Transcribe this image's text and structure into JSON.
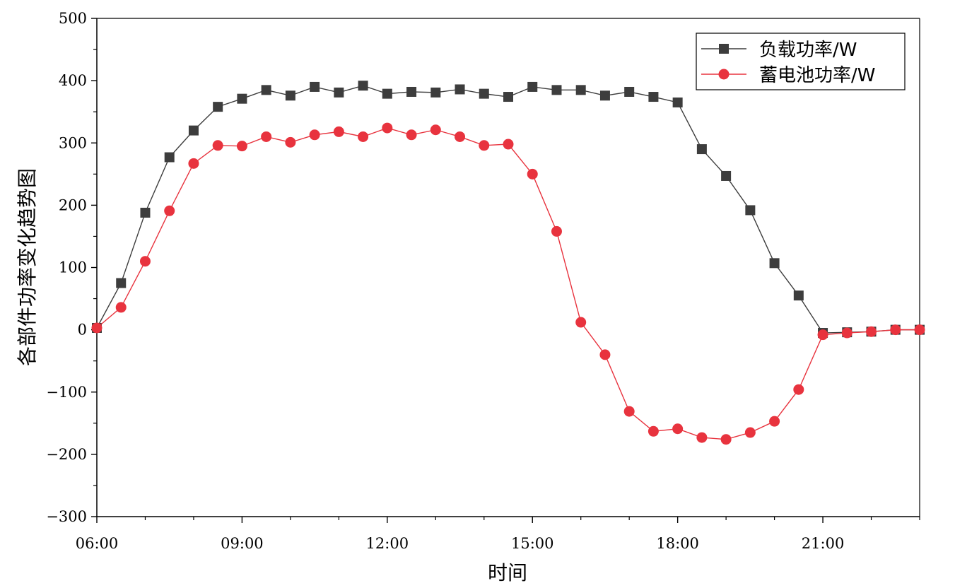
{
  "chart_data": {
    "type": "line",
    "xlabel": "时间",
    "ylabel": "各部件功率变化趋势图",
    "xlim": [
      "06:00",
      "23:00"
    ],
    "ylim": [
      -300,
      500
    ],
    "x_ticks": [
      "06:00",
      "09:00",
      "12:00",
      "15:00",
      "18:00",
      "21:00"
    ],
    "y_ticks": [
      -300,
      -200,
      -100,
      0,
      100,
      200,
      300,
      400,
      500
    ],
    "grid": false,
    "legend_position": "top-right",
    "x": [
      "06:00",
      "06:30",
      "07:00",
      "07:30",
      "08:00",
      "08:30",
      "09:00",
      "09:30",
      "10:00",
      "10:30",
      "11:00",
      "11:30",
      "12:00",
      "12:30",
      "13:00",
      "13:30",
      "14:00",
      "14:30",
      "15:00",
      "15:30",
      "16:00",
      "16:30",
      "17:00",
      "17:30",
      "18:00",
      "18:30",
      "19:00",
      "19:30",
      "20:00",
      "20:30",
      "21:00",
      "21:30",
      "22:00",
      "22:30",
      "23:00"
    ],
    "series": [
      {
        "name": "负载功率/W",
        "color": "#3d3d3d",
        "marker": "square",
        "values": [
          3,
          75,
          188,
          277,
          320,
          358,
          371,
          385,
          376,
          390,
          381,
          392,
          379,
          382,
          381,
          386,
          379,
          374,
          390,
          385,
          385,
          376,
          382,
          374,
          365,
          290,
          247,
          192,
          107,
          55,
          -5,
          -4,
          -3,
          0,
          0
        ]
      },
      {
        "name": "蓄电池功率/W",
        "color": "#e8333e",
        "marker": "circle",
        "values": [
          3,
          36,
          110,
          191,
          267,
          296,
          295,
          310,
          301,
          313,
          318,
          310,
          324,
          313,
          321,
          310,
          296,
          298,
          250,
          158,
          12,
          -40,
          -131,
          -163,
          -159,
          -173,
          -176,
          -165,
          -147,
          -96,
          -8,
          -5,
          -3,
          0,
          0
        ]
      }
    ]
  }
}
